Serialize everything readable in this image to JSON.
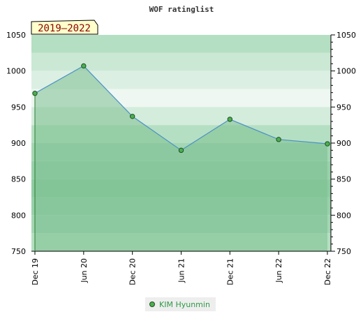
{
  "chart_data": {
    "type": "area",
    "title": "WOF ratinglist",
    "badge": "2019–2022",
    "x": [
      "Dec 19",
      "Jun 20",
      "Dec 20",
      "Jun 21",
      "Dec 21",
      "Jun 22",
      "Dec 22"
    ],
    "series": [
      {
        "name": "KIM Hyunmin",
        "values": [
          969,
          1007,
          937,
          890,
          933,
          905,
          899
        ]
      }
    ],
    "ylim": [
      750,
      1050
    ],
    "yticks": [
      750,
      800,
      850,
      900,
      950,
      1000,
      1050
    ],
    "xlabel": "",
    "ylabel": "",
    "legend_position": "bottom-center",
    "colors": {
      "line": "#4a90c8",
      "fill": "#7cc08f",
      "marker": "#4caf50",
      "marker_stroke": "#1e4f22",
      "band_dark": "#7cc08f",
      "band_light": "#e8f3ec",
      "badge_bg": "#ffffcc",
      "badge_text": "#8b0000"
    }
  }
}
